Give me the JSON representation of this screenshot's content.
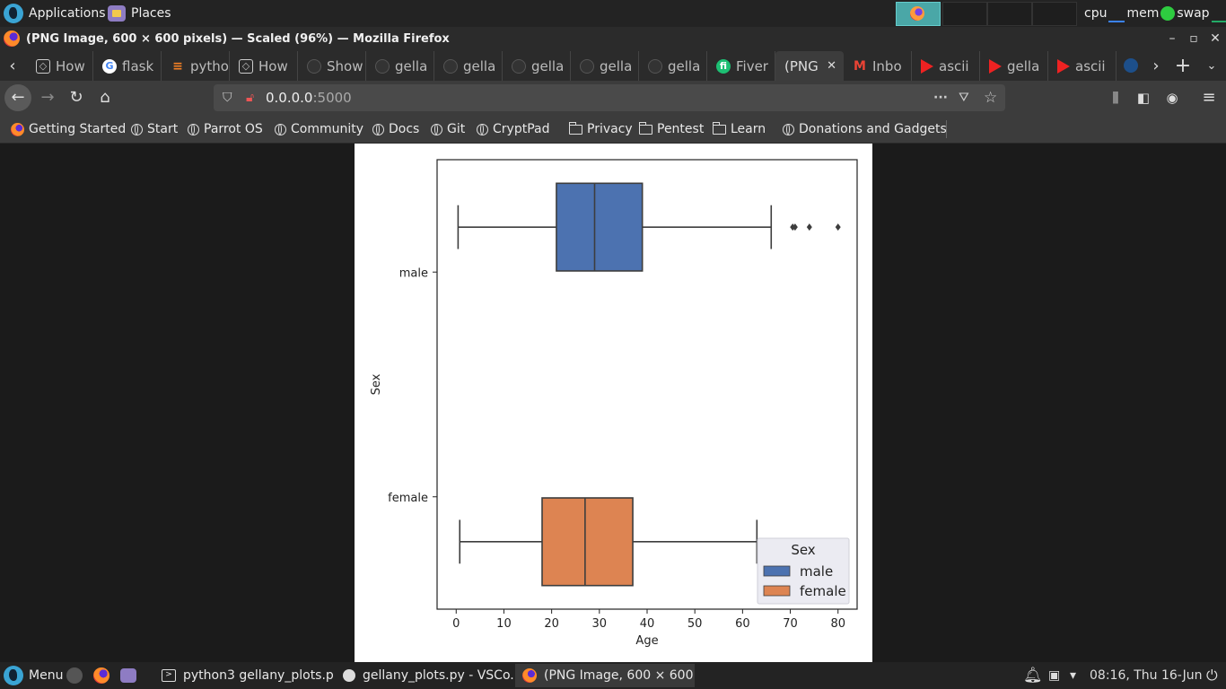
{
  "top_panel": {
    "applications": "Applications",
    "places": "Places",
    "cpu": "cpu",
    "mem": "mem",
    "swap": "swap"
  },
  "window": {
    "title": "(PNG Image, 600 × 600 pixels) — Scaled (96%) — Mozilla Firefox"
  },
  "tabs": [
    {
      "label": "How",
      "icon": "codepen-icon"
    },
    {
      "label": "flask",
      "icon": "google-icon"
    },
    {
      "label": "pytho",
      "icon": "stackoverflow-icon"
    },
    {
      "label": "How",
      "icon": "codepen-icon"
    },
    {
      "label": "Show",
      "icon": "github-icon"
    },
    {
      "label": "gella",
      "icon": "github-icon"
    },
    {
      "label": "gella",
      "icon": "github-icon"
    },
    {
      "label": "gella",
      "icon": "github-icon"
    },
    {
      "label": "gella",
      "icon": "github-icon"
    },
    {
      "label": "gella",
      "icon": "github-icon"
    },
    {
      "label": "Fiver",
      "icon": "fiverr-icon"
    },
    {
      "label": "(PNG",
      "icon": "",
      "active": true
    },
    {
      "label": "Inbo",
      "icon": "gmail-icon"
    },
    {
      "label": "ascii",
      "icon": "youtube-icon"
    },
    {
      "label": "gella",
      "icon": "youtube-icon"
    },
    {
      "label": "ascii",
      "icon": "youtube-icon"
    }
  ],
  "nav": {
    "url_host": "0.0.0.0",
    "url_port": ":5000"
  },
  "bookmarks": [
    {
      "label": "Getting Started",
      "icon": "firefox-icon"
    },
    {
      "label": "Start",
      "icon": "globe-icon"
    },
    {
      "label": "Parrot OS",
      "icon": "globe-icon"
    },
    {
      "label": "Community",
      "icon": "globe-icon"
    },
    {
      "label": "Docs",
      "icon": "globe-icon"
    },
    {
      "label": "Git",
      "icon": "globe-icon"
    },
    {
      "label": "CryptPad",
      "icon": "globe-icon"
    },
    {
      "label": "Privacy",
      "icon": "folder-icon"
    },
    {
      "label": "Pentest",
      "icon": "folder-icon"
    },
    {
      "label": "Learn",
      "icon": "folder-icon"
    },
    {
      "label": "Donations and Gadgets",
      "icon": "globe-icon"
    }
  ],
  "chart_data": {
    "type": "boxplot",
    "orientation": "horizontal",
    "xlabel": "Age",
    "ylabel": "Sex",
    "xlim": [
      -4,
      84
    ],
    "xticks": [
      0,
      10,
      20,
      30,
      40,
      50,
      60,
      70,
      80
    ],
    "categories": [
      "male",
      "female"
    ],
    "series": [
      {
        "name": "male",
        "color": "#4c72b0",
        "whisker_low": 0.4,
        "q1": 21,
        "median": 29,
        "q3": 39,
        "whisker_high": 66,
        "outliers": [
          70.5,
          71,
          74,
          80
        ]
      },
      {
        "name": "female",
        "color": "#dd8452",
        "whisker_low": 0.75,
        "q1": 18,
        "median": 27,
        "q3": 37,
        "whisker_high": 63,
        "outliers": []
      }
    ],
    "legend": {
      "title": "Sex",
      "position": "lower right",
      "entries": [
        "male",
        "female"
      ]
    }
  },
  "taskbar": {
    "menu": "Menu",
    "tasks": [
      {
        "label": "python3 gellany_plots.p...",
        "icon": "terminal-icon"
      },
      {
        "label": "gellany_plots.py - VSCo...",
        "icon": "vscode-icon"
      },
      {
        "label": "(PNG Image, 600 × 600 ...",
        "icon": "firefox-icon",
        "active": true
      }
    ],
    "clock": "08:16, Thu 16-Jun"
  }
}
